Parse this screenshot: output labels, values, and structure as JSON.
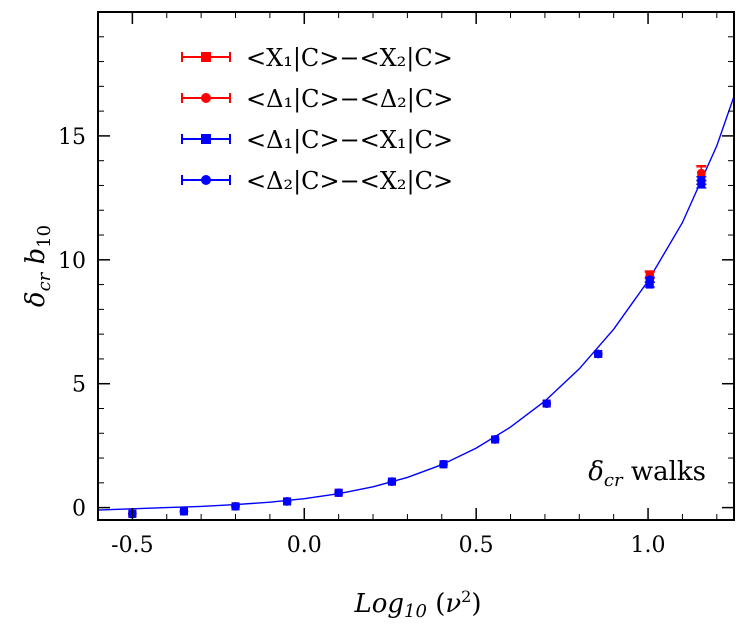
{
  "chart_data": {
    "type": "scatter",
    "xlabel": "Log10 (ν²)",
    "ylabel": "δcr b10",
    "xlim": [
      -0.6,
      1.25
    ],
    "ylim": [
      -0.5,
      20
    ],
    "xticks": [
      -0.5,
      0.0,
      0.5,
      1.0
    ],
    "xtick_labels": [
      "-0.5",
      "0.0",
      "0.5",
      "1.0"
    ],
    "yticks": [
      0,
      5,
      10,
      15
    ],
    "ytick_labels": [
      "0",
      "5",
      "10",
      "15"
    ],
    "annotation": "δcr walks",
    "legend_position": "top-left",
    "fit_curve": {
      "color": "#0000ff",
      "x": [
        -0.6,
        -0.5,
        -0.4,
        -0.3,
        -0.2,
        -0.1,
        0.0,
        0.1,
        0.2,
        0.3,
        0.4,
        0.5,
        0.6,
        0.7,
        0.8,
        0.9,
        1.0,
        1.1,
        1.2,
        1.25
      ],
      "y": [
        -0.1,
        -0.05,
        0.0,
        0.05,
        0.12,
        0.22,
        0.36,
        0.56,
        0.84,
        1.22,
        1.73,
        2.4,
        3.25,
        4.3,
        5.6,
        7.2,
        9.15,
        11.5,
        14.6,
        16.6
      ]
    },
    "series": [
      {
        "name": "<X1|C>−<X2|C>",
        "legend_text": "<X₁|C>−<X₂|C>",
        "color": "#ff0000",
        "marker": "square",
        "x": [
          -0.5,
          -0.35,
          -0.2,
          -0.05,
          0.1,
          0.255,
          0.405,
          0.555,
          0.705,
          0.855,
          1.005,
          1.155
        ],
        "y": [
          -0.25,
          -0.15,
          0.05,
          0.25,
          0.6,
          1.05,
          1.75,
          2.75,
          4.2,
          6.2,
          9.3,
          13.4
        ],
        "err": [
          0,
          0,
          0,
          0,
          0,
          0,
          0,
          0,
          0,
          0,
          0.2,
          0.35
        ]
      },
      {
        "name": "<Δ1|C>−<Δ2|C>",
        "legend_text": "<Δ₁|C>−<Δ₂|C>",
        "color": "#ff0000",
        "marker": "circle",
        "x": [
          -0.5,
          -0.35,
          -0.2,
          -0.05,
          0.1,
          0.255,
          0.405,
          0.555,
          0.705,
          0.855,
          1.005,
          1.155
        ],
        "y": [
          -0.25,
          -0.15,
          0.05,
          0.25,
          0.6,
          1.05,
          1.75,
          2.75,
          4.2,
          6.2,
          9.4,
          13.5
        ],
        "err": [
          0,
          0,
          0,
          0,
          0,
          0,
          0,
          0,
          0,
          0,
          0.15,
          0.3
        ]
      },
      {
        "name": "<Δ1|C>−<X1|C>",
        "legend_text": "<Δ₁|C>−<X₁|C>",
        "color": "#0000ff",
        "marker": "square",
        "x": [
          -0.5,
          -0.35,
          -0.2,
          -0.05,
          0.1,
          0.255,
          0.405,
          0.555,
          0.705,
          0.855,
          1.005,
          1.155
        ],
        "y": [
          -0.25,
          -0.15,
          0.05,
          0.25,
          0.6,
          1.05,
          1.75,
          2.75,
          4.2,
          6.2,
          9.0,
          13.05
        ],
        "err": [
          0,
          0,
          0,
          0,
          0,
          0,
          0,
          0,
          0,
          0,
          0.1,
          0.15
        ]
      },
      {
        "name": "<Δ2|C>−<X2|C>",
        "legend_text": "<Δ₂|C>−<X₂|C>",
        "color": "#0000ff",
        "marker": "circle",
        "x": [
          -0.5,
          -0.35,
          -0.2,
          -0.05,
          0.1,
          0.255,
          0.405,
          0.555,
          0.705,
          0.855,
          1.005,
          1.155
        ],
        "y": [
          -0.25,
          -0.15,
          0.05,
          0.25,
          0.6,
          1.05,
          1.75,
          2.75,
          4.2,
          6.2,
          9.2,
          13.2
        ],
        "err": [
          0,
          0,
          0,
          0,
          0,
          0,
          0,
          0,
          0,
          0,
          0.1,
          0.15
        ]
      }
    ]
  }
}
